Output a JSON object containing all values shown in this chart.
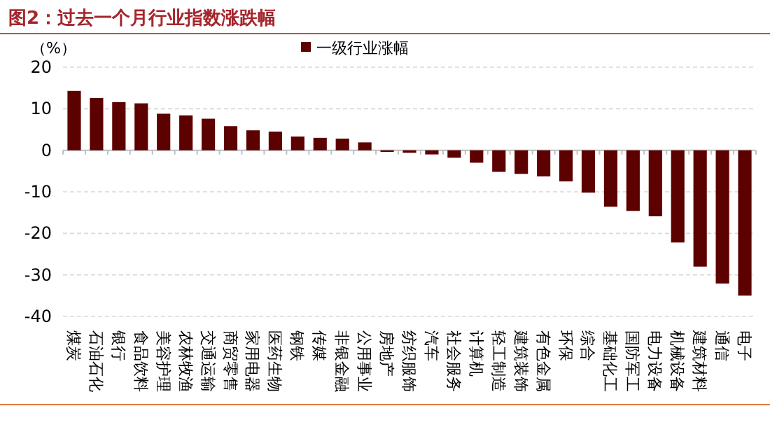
{
  "chart_data": {
    "type": "bar",
    "title": "图2：过去一个月行业指数涨跌幅",
    "ylabel": "（%）",
    "categories": [
      "煤炭",
      "石油石化",
      "银行",
      "食品饮料",
      "美容护理",
      "农林牧渔",
      "交通运输",
      "商贸零售",
      "家用电器",
      "医药生物",
      "钢铁",
      "传媒",
      "非银金融",
      "公用事业",
      "房地产",
      "纺织服饰",
      "汽车",
      "社会服务",
      "计算机",
      "轻工制造",
      "建筑装饰",
      "有色金属",
      "环保",
      "综合",
      "基础化工",
      "国防军工",
      "电力设备",
      "机械设备",
      "建筑材料",
      "通信",
      "电子"
    ],
    "series": [
      {
        "name": "一级行业涨幅",
        "color": "#5c0000",
        "values": [
          14.3,
          12.6,
          11.6,
          11.3,
          8.8,
          8.4,
          7.6,
          5.8,
          4.8,
          4.5,
          3.3,
          3.0,
          2.8,
          1.9,
          -0.2,
          -0.6,
          -1.0,
          -1.8,
          -3.0,
          -5.2,
          -5.7,
          -6.3,
          -7.5,
          -10.2,
          -13.6,
          -14.6,
          -15.9,
          -22.2,
          -28.0,
          -32.1,
          -35.0
        ]
      }
    ],
    "ylim": [
      -40,
      20
    ],
    "yticks": [
      -40,
      -30,
      -20,
      -10,
      0,
      10,
      20
    ],
    "grid": "y",
    "legend": "top"
  }
}
